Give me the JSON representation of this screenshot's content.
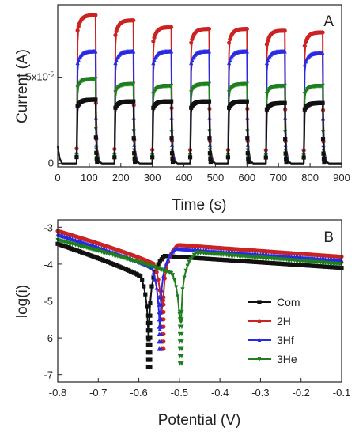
{
  "chart_data": [
    {
      "type": "line",
      "panel": "A",
      "xlabel": "Time (s)",
      "ylabel": "Current (A)",
      "xlim": [
        0,
        900
      ],
      "ylim": [
        -2e-06,
        9.2e-05
      ],
      "x_ticks": [
        0,
        100,
        200,
        300,
        400,
        500,
        600,
        700,
        800,
        900
      ],
      "x_tick_labels": [
        "0",
        "100",
        "200",
        "300",
        "400",
        "500",
        "600",
        "700",
        "800",
        "900"
      ],
      "y_ticks": [
        0,
        5e-05
      ],
      "y_tick_labels": [
        "0",
        "5x10-5"
      ],
      "on_intervals": [
        [
          60,
          120
        ],
        [
          180,
          240
        ],
        [
          300,
          360
        ],
        [
          420,
          480
        ],
        [
          540,
          600
        ],
        [
          660,
          720
        ],
        [
          780,
          840
        ]
      ],
      "series": [
        {
          "color": "#cc2222",
          "marker": "circle",
          "plateau_values": [
            8.6e-05,
            8.3e-05,
            7.9e-05,
            7.8e-05,
            7.8e-05,
            7.7e-05,
            7.6e-05
          ]
        },
        {
          "color": "#2a2ae0",
          "marker": "triangle-up",
          "plateau_values": [
            6.5e-05,
            6.5e-05,
            6.5e-05,
            6.5e-05,
            6.5e-05,
            6.5e-05,
            6.4e-05
          ]
        },
        {
          "color": "#1f7f1f",
          "marker": "triangle-down",
          "plateau_values": [
            4.9e-05,
            4.6e-05,
            4.5e-05,
            4.6e-05,
            4.6e-05,
            4.5e-05,
            4.5e-05
          ]
        },
        {
          "color": "#111111",
          "marker": "square",
          "plateau_values": [
            3.7e-05,
            3.6e-05,
            3.6e-05,
            3.6e-05,
            3.6e-05,
            3.5e-05,
            3.5e-05
          ]
        }
      ],
      "initial_spike": 1e-05
    },
    {
      "type": "line",
      "panel": "B",
      "xlabel": "Potential (V)",
      "ylabel": "log(i)",
      "xlim": [
        -0.8,
        -0.1
      ],
      "ylim": [
        -7.2,
        -2.8
      ],
      "x_ticks": [
        -0.8,
        -0.7,
        -0.6,
        -0.5,
        -0.4,
        -0.3,
        -0.2,
        -0.1
      ],
      "x_tick_labels": [
        "-0.8",
        "-0.7",
        "-0.6",
        "-0.5",
        "-0.4",
        "-0.3",
        "-0.2",
        "-0.1"
      ],
      "y_ticks": [
        -3,
        -4,
        -5,
        -6,
        -7
      ],
      "y_tick_labels": [
        "-3",
        "-4",
        "-5",
        "-6",
        "-7"
      ],
      "legend": "center-right",
      "series": [
        {
          "name": "Com",
          "color": "#111111",
          "marker": "square",
          "x_corr": -0.575,
          "y_min": -7.0,
          "y_start": -3.45,
          "y_end": -4.3
        },
        {
          "name": "2H",
          "color": "#cc2222",
          "marker": "circle",
          "x_corr": -0.542,
          "y_min": -6.5,
          "y_start": -3.1,
          "y_end": -4.0
        },
        {
          "name": "3Hf",
          "color": "#2a2ae0",
          "marker": "triangle-up",
          "x_corr": -0.548,
          "y_min": -6.5,
          "y_start": -3.2,
          "y_end": -4.1
        },
        {
          "name": "3He",
          "color": "#1f7f1f",
          "marker": "triangle-down",
          "x_corr": -0.497,
          "y_min": -6.9,
          "y_start": -3.35,
          "y_end": -4.2
        }
      ]
    }
  ]
}
